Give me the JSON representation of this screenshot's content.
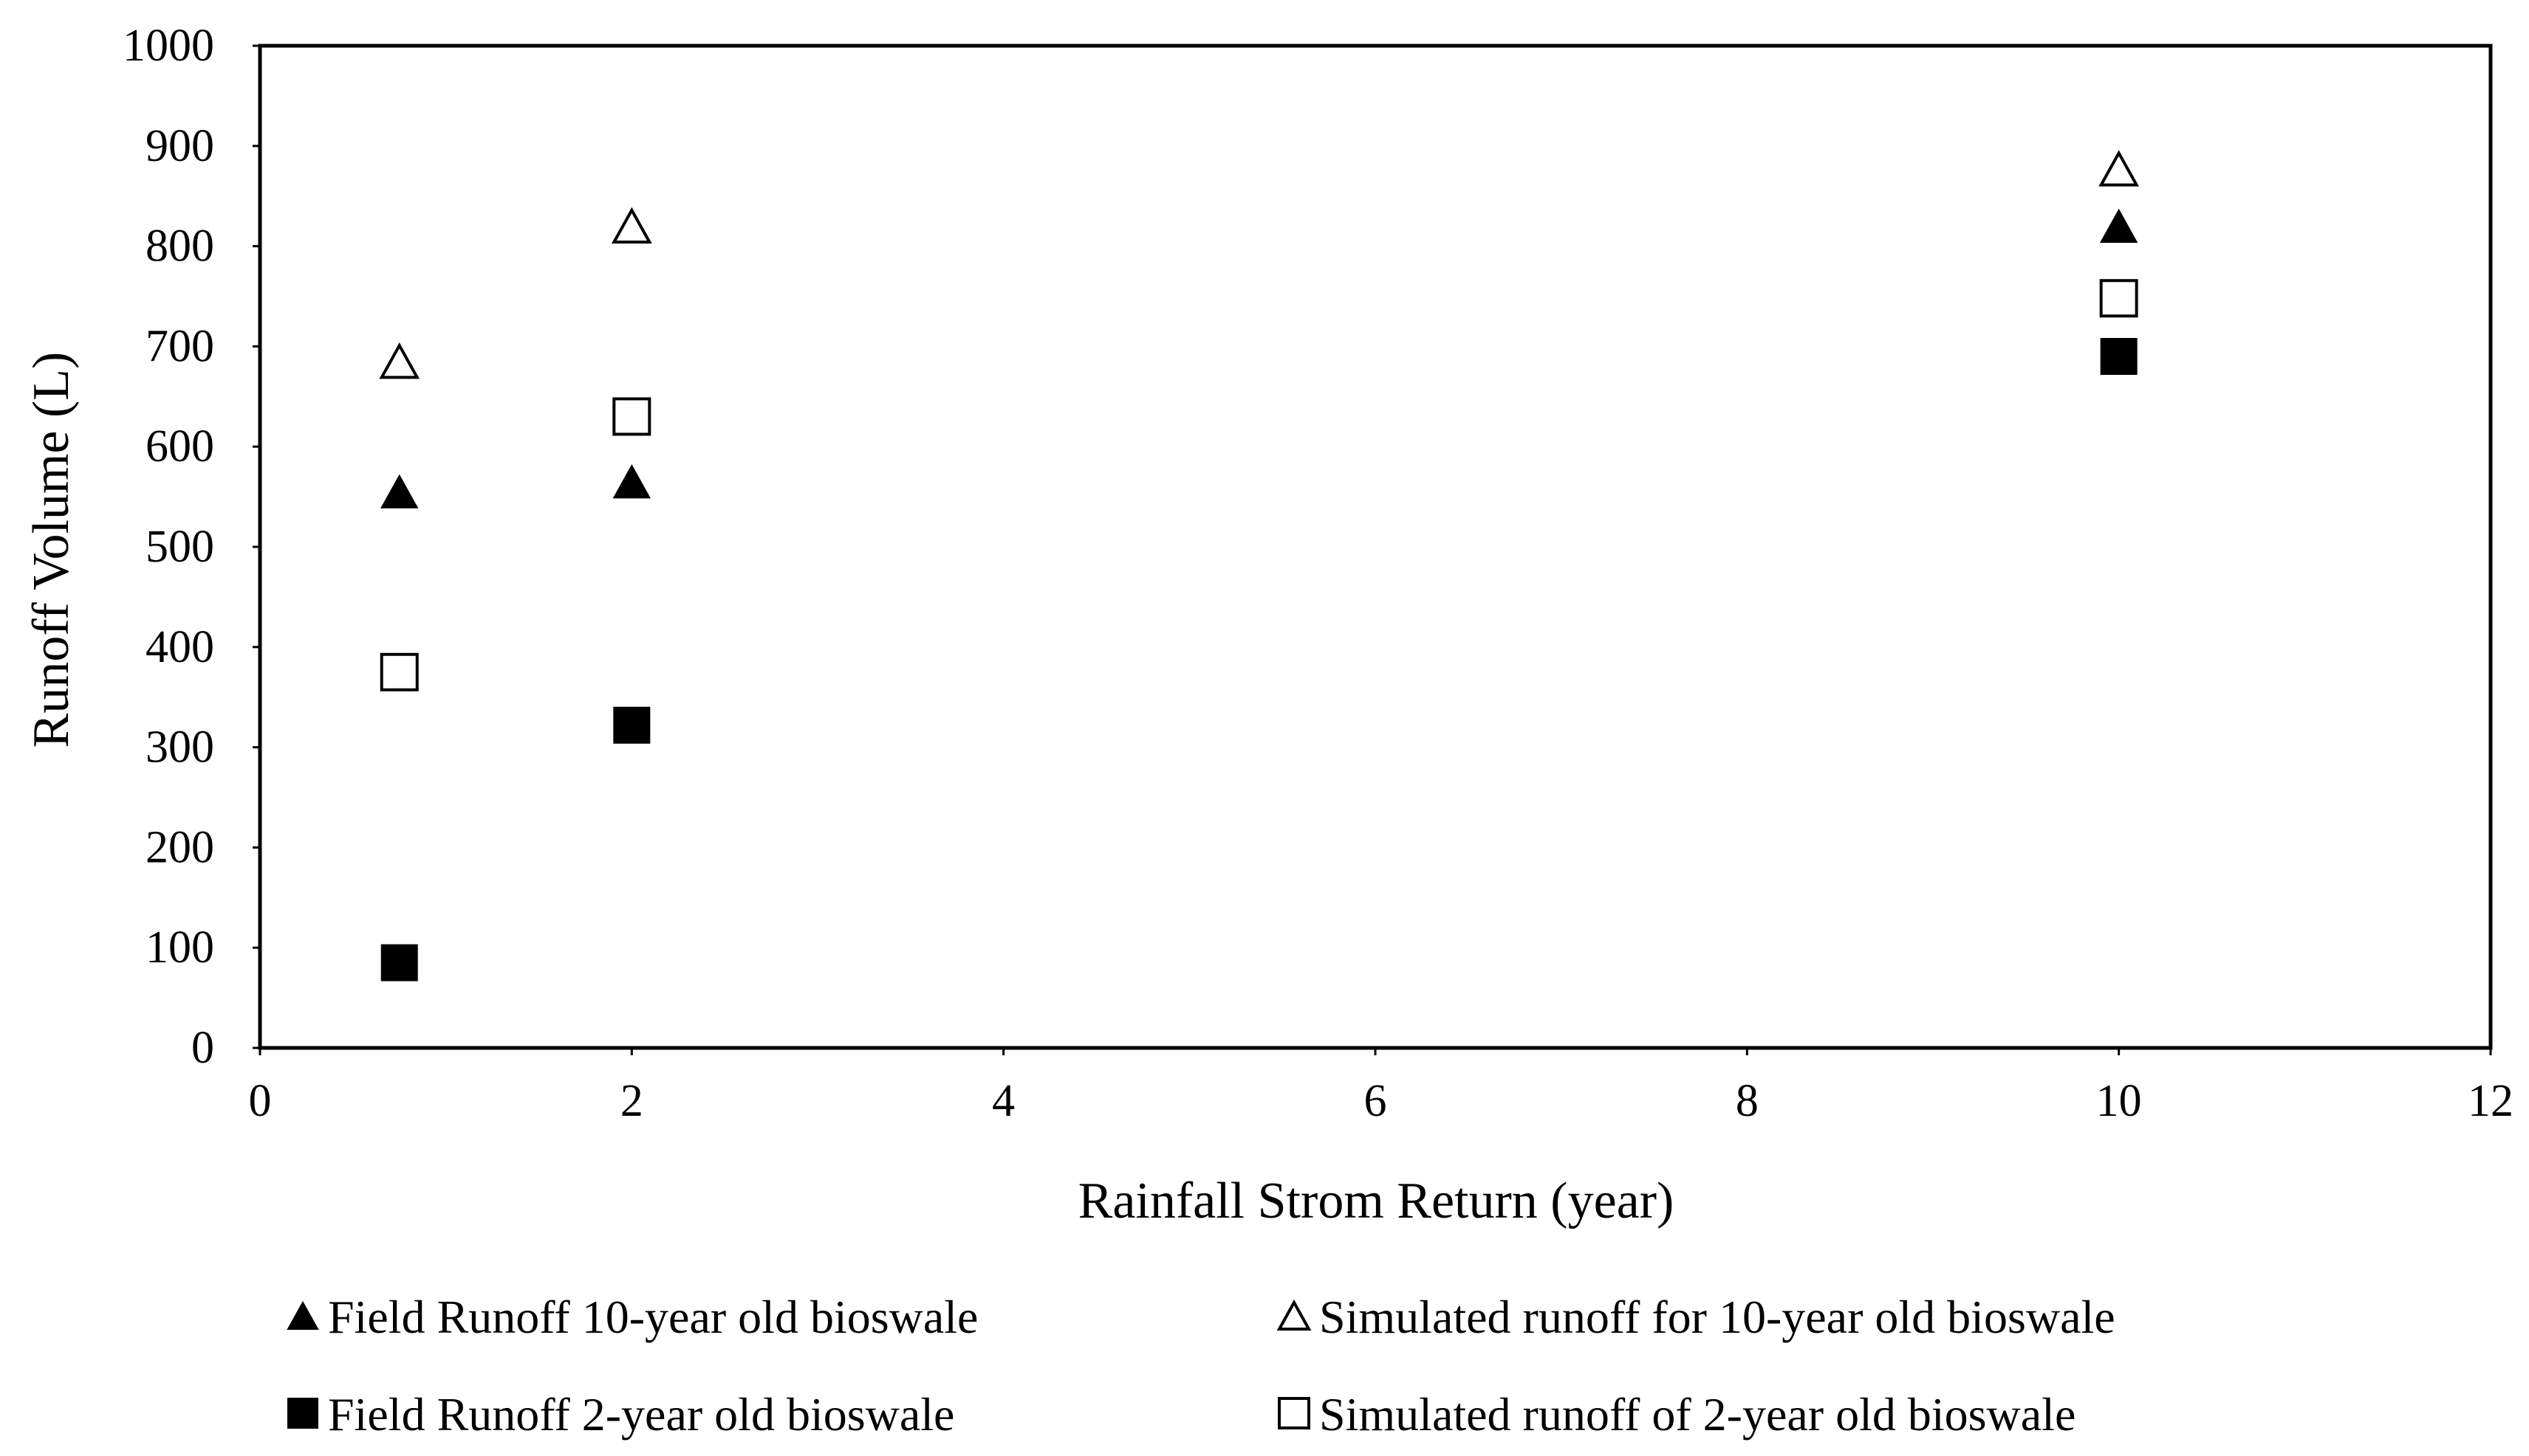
{
  "chart_data": {
    "type": "scatter",
    "title": "",
    "xlabel": "Rainfall Strom Return (year)",
    "ylabel": "Runoff Volume (L)",
    "xlim": [
      0,
      12
    ],
    "ylim": [
      0,
      1000
    ],
    "xticks": [
      "0",
      "2",
      "4",
      "6",
      "8",
      "10",
      "12"
    ],
    "yticks": [
      "0",
      "100",
      "200",
      "300",
      "400",
      "500",
      "600",
      "700",
      "800",
      "900",
      "1000"
    ],
    "grid": false,
    "legend_position": "bottom",
    "series": [
      {
        "name": "Field Runoff 10-year old bioswale",
        "marker": "triangle-filled",
        "color": "#000000",
        "points": [
          {
            "x": 0.75,
            "y": 555
          },
          {
            "x": 2,
            "y": 565
          },
          {
            "x": 10,
            "y": 820
          }
        ]
      },
      {
        "name": "Simulated runoff for 10-year old bioswale",
        "marker": "triangle-open",
        "color": "#000000",
        "points": [
          {
            "x": 0.75,
            "y": 685
          },
          {
            "x": 2,
            "y": 820
          },
          {
            "x": 10,
            "y": 877
          }
        ]
      },
      {
        "name": "Field Runoff 2-year old bioswale",
        "marker": "square-filled",
        "color": "#000000",
        "points": [
          {
            "x": 0.75,
            "y": 85
          },
          {
            "x": 2,
            "y": 322
          },
          {
            "x": 10,
            "y": 690
          }
        ]
      },
      {
        "name": "Simulated runoff of 2-year old bioswale",
        "marker": "square-open",
        "color": "#000000",
        "points": [
          {
            "x": 0.75,
            "y": 375
          },
          {
            "x": 2,
            "y": 630
          },
          {
            "x": 10,
            "y": 748
          }
        ]
      }
    ]
  }
}
